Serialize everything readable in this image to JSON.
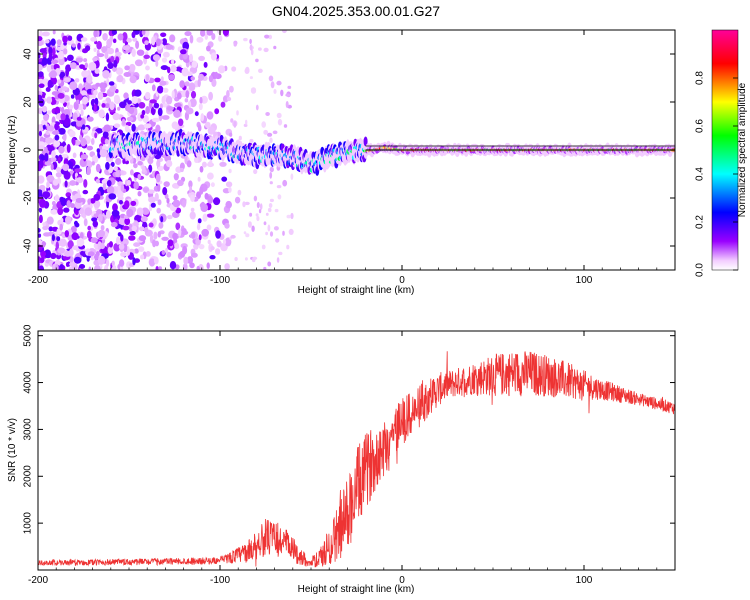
{
  "chart_data": [
    {
      "type": "heatmap",
      "title": "GN04.2025.353.00.01.G27",
      "xlabel": "Height of straight line (km)",
      "ylabel": "Frequency (Hz)",
      "xlim": [
        -200,
        150
      ],
      "ylim": [
        -50,
        50
      ],
      "x_ticks": [
        -200,
        -100,
        0,
        100
      ],
      "x_tick_labels": [
        "-200",
        "-100",
        "0",
        "100"
      ],
      "y_ticks": [
        -40,
        -20,
        0,
        20,
        40
      ],
      "y_tick_labels": [
        "-40",
        "-20",
        "0",
        "20",
        "40"
      ],
      "colorbar": {
        "label": "Normalized spectral amplitude",
        "range": [
          0,
          1
        ],
        "ticks": [
          0.0,
          0.2,
          0.4,
          0.6,
          0.8
        ],
        "tick_labels": [
          "0.0",
          "0.2",
          "0.4",
          "0.6",
          "0.8"
        ],
        "colors": [
          "#ffffff",
          "#9900ff",
          "#0000ff",
          "#00ffff",
          "#00ff00",
          "#ffff00",
          "#ff0000",
          "#ff0099"
        ]
      },
      "ridge": {
        "description": "spectral ridge near 0 Hz",
        "points": [
          [
            -150,
            2
          ],
          [
            -120,
            3
          ],
          [
            -100,
            1
          ],
          [
            -80,
            -2
          ],
          [
            -60,
            -3
          ],
          [
            -50,
            -6
          ],
          [
            -40,
            -3
          ],
          [
            -30,
            -1
          ],
          [
            -15,
            0
          ],
          [
            -10,
            1
          ],
          [
            0,
            0
          ],
          [
            150,
            0
          ]
        ],
        "zero_line_from_x": -20
      },
      "grid": false
    },
    {
      "type": "line",
      "xlabel": "Height of straight line (km)",
      "ylabel": "SNR (10 * v/v)",
      "xlim": [
        -200,
        150
      ],
      "ylim": [
        0,
        5100
      ],
      "x_ticks": [
        -200,
        -100,
        0,
        100
      ],
      "x_tick_labels": [
        "-200",
        "-100",
        "0",
        "100"
      ],
      "y_ticks": [
        1000,
        2000,
        3000,
        4000,
        5000
      ],
      "y_tick_labels": [
        "1000",
        "2000",
        "3000",
        "4000",
        "5000"
      ],
      "series": [
        {
          "name": "SNR",
          "color": "#ee3333",
          "envelope_x": [
            -200,
            -150,
            -100,
            -85,
            -75,
            -65,
            -55,
            -50,
            -45,
            -40,
            -35,
            -30,
            -25,
            -20,
            -15,
            -10,
            -5,
            0,
            5,
            10,
            15,
            20,
            25,
            30,
            40,
            50,
            60,
            70,
            80,
            90,
            100,
            110,
            120,
            130,
            140,
            150
          ],
          "envelope_mean": [
            150,
            170,
            200,
            380,
            700,
            600,
            260,
            150,
            250,
            500,
            800,
            1200,
            1700,
            2100,
            2400,
            2600,
            2900,
            3200,
            3300,
            3500,
            3700,
            3850,
            3950,
            4000,
            4100,
            4150,
            4200,
            4200,
            4150,
            4050,
            3950,
            3850,
            3750,
            3650,
            3550,
            3450
          ],
          "envelope_amp": [
            60,
            80,
            80,
            250,
            450,
            400,
            200,
            100,
            250,
            450,
            700,
            900,
            1000,
            900,
            800,
            700,
            650,
            600,
            550,
            500,
            450,
            400,
            350,
            350,
            400,
            500,
            550,
            550,
            500,
            450,
            350,
            250,
            200,
            150,
            150,
            150
          ]
        }
      ],
      "grid": false
    }
  ]
}
